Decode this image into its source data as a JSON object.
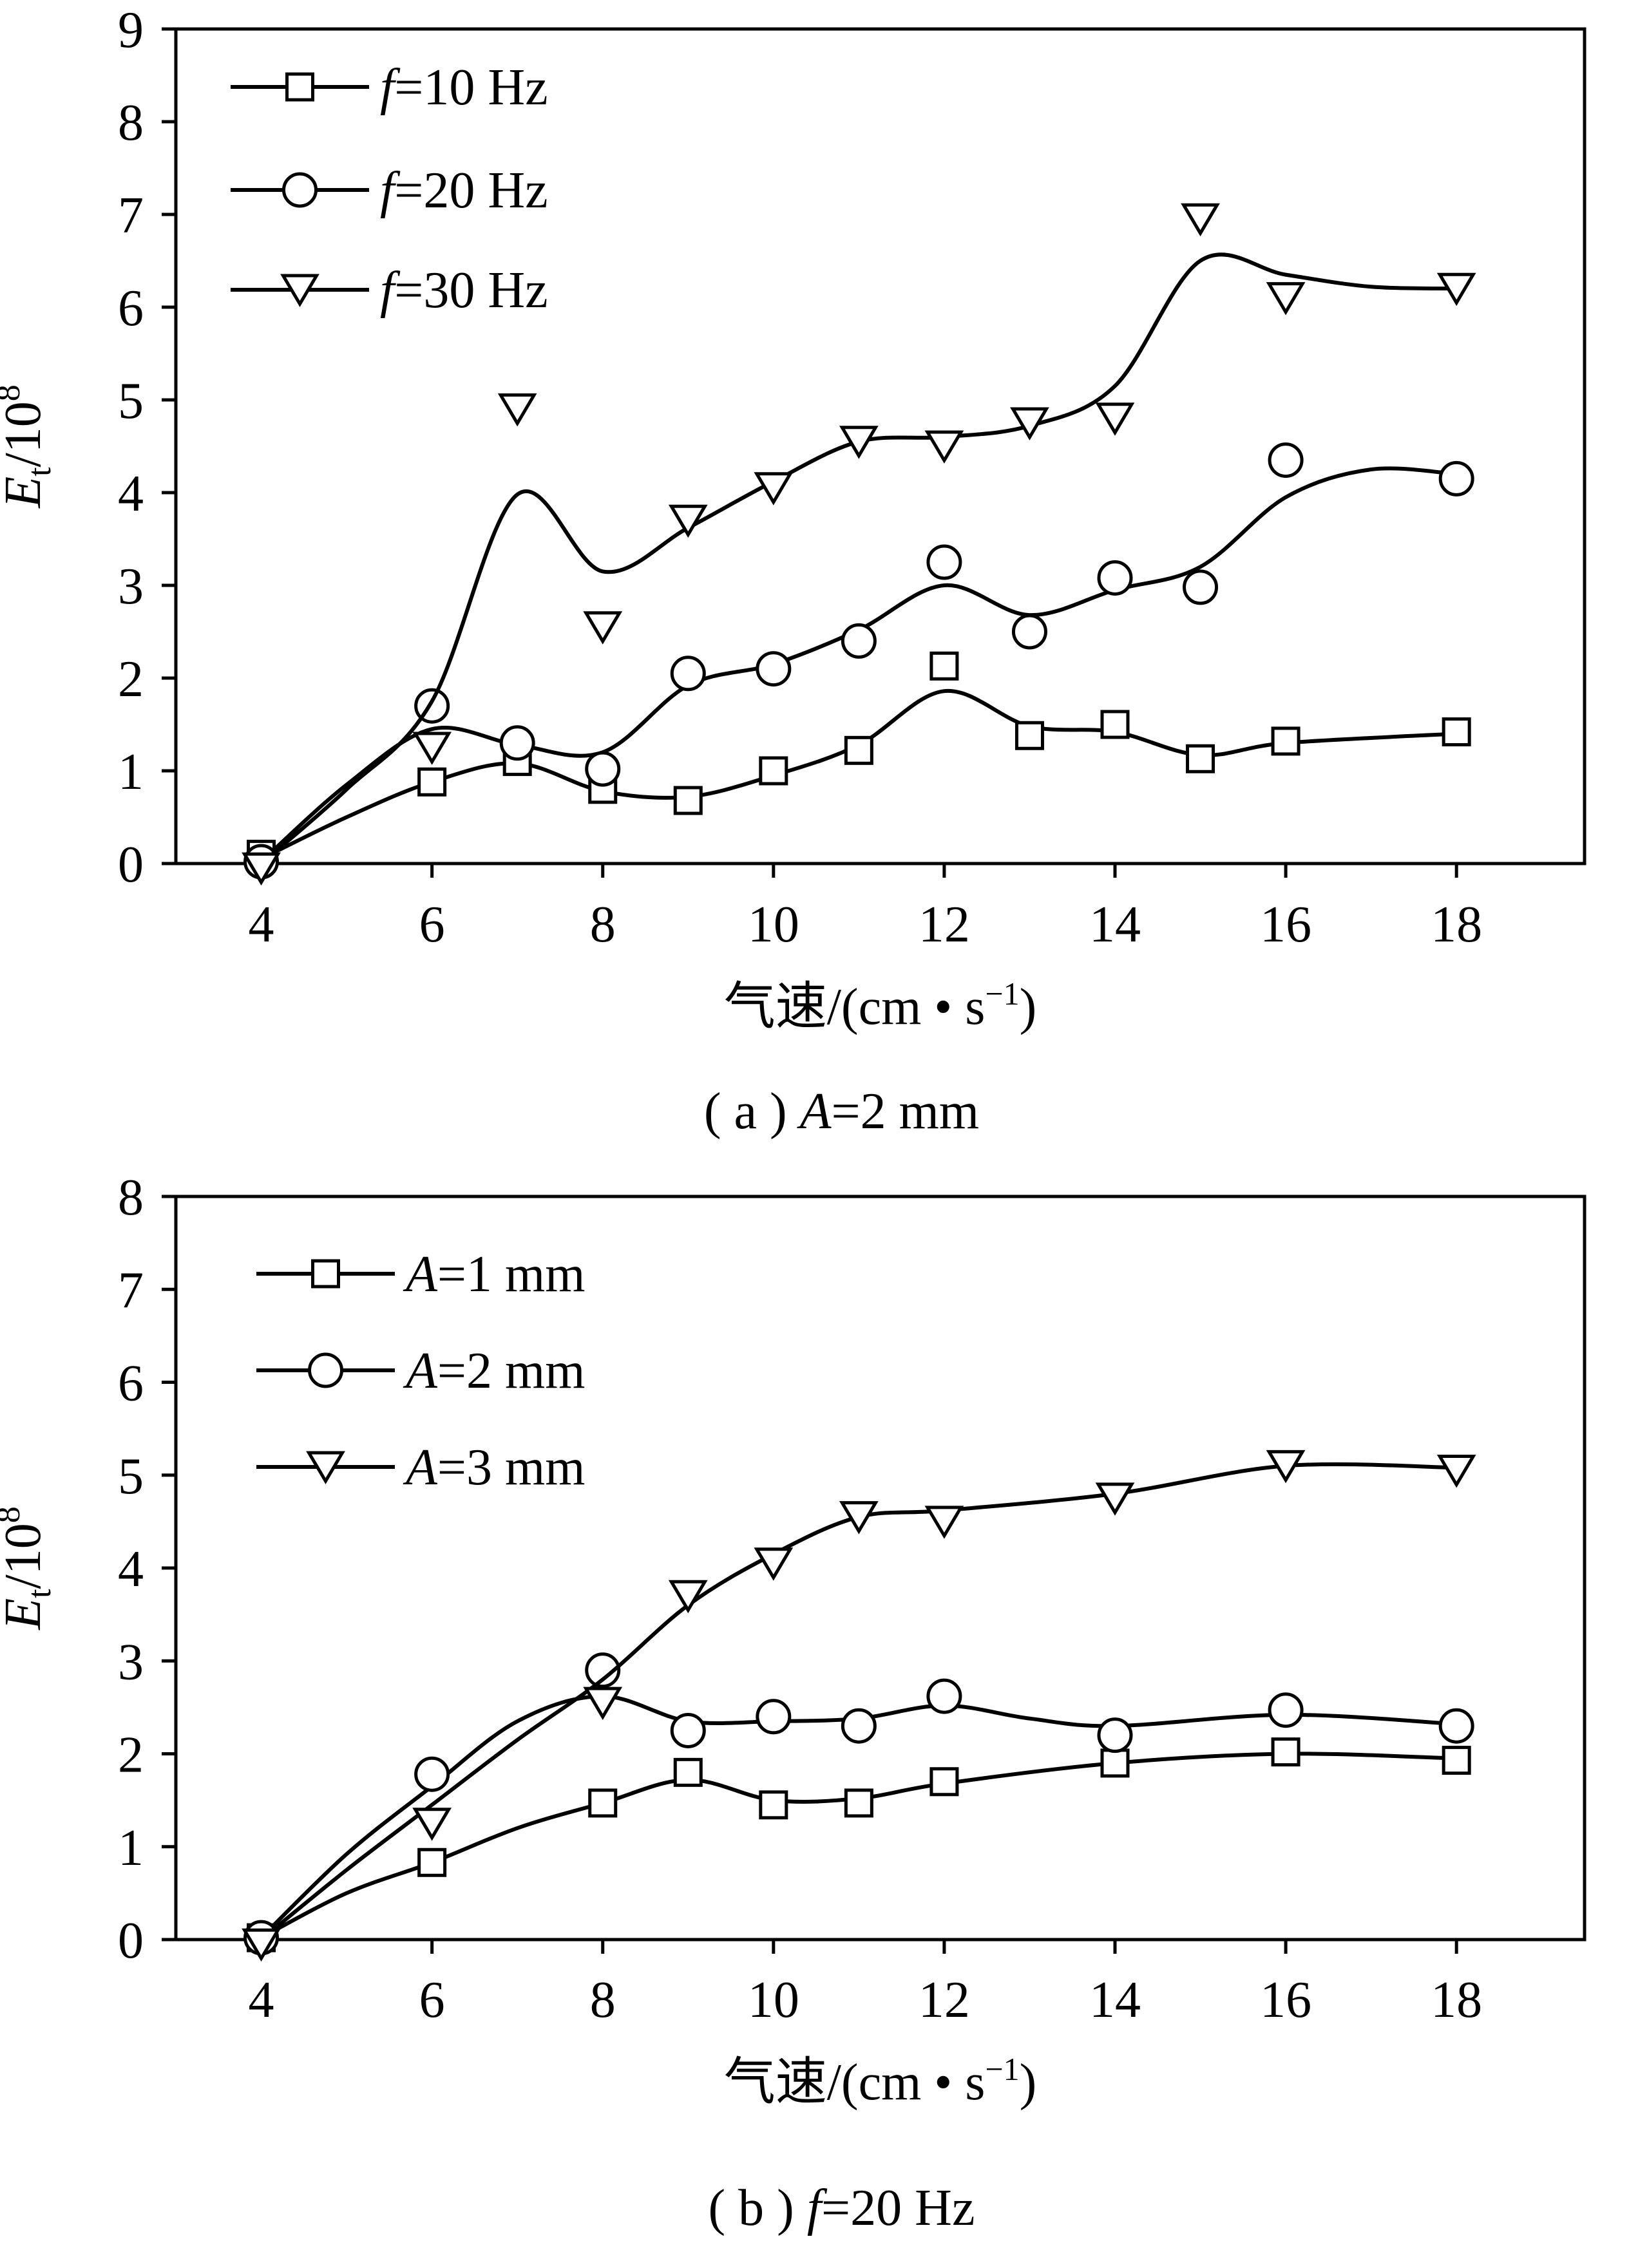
{
  "chart_data": [
    {
      "type": "line",
      "panel": "a",
      "caption": "( a ) A=2 mm",
      "caption_prefix": "( a ) ",
      "caption_var": "A",
      "caption_rest": "=2 mm",
      "xlabel": "气速/(cm • s⁻¹)",
      "xlabel_main": "气速/(cm • s",
      "xlabel_sup": "−1",
      "xlabel_end": ")",
      "ylabel_main": "E",
      "ylabel_sub": "t",
      "ylabel_mid": "/10",
      "ylabel_sup": "8",
      "xlim": [
        3,
        19.5
      ],
      "ylim": [
        0,
        9
      ],
      "xticks": [
        4,
        6,
        8,
        10,
        12,
        14,
        16,
        18
      ],
      "yticks": [
        0,
        1,
        2,
        3,
        4,
        5,
        6,
        7,
        8,
        9
      ],
      "grid": false,
      "legend_position": "top-left",
      "series": [
        {
          "name": "f=10 Hz",
          "legend_var": "f",
          "legend_rest": "=10 Hz",
          "marker": "square",
          "x": [
            4,
            6,
            7,
            8,
            9,
            10,
            11,
            12,
            13,
            14,
            15,
            16,
            18
          ],
          "y": [
            0.1,
            0.88,
            1.1,
            0.8,
            0.68,
            1.0,
            1.22,
            2.13,
            1.38,
            1.5,
            1.13,
            1.32,
            1.42
          ],
          "curve": [
            [
              4,
              0.05
            ],
            [
              5,
              0.5
            ],
            [
              6,
              0.88
            ],
            [
              7,
              1.08
            ],
            [
              8,
              0.78
            ],
            [
              9,
              0.72
            ],
            [
              10,
              0.95
            ],
            [
              11,
              1.28
            ],
            [
              12,
              1.86
            ],
            [
              13,
              1.48
            ],
            [
              14,
              1.42
            ],
            [
              15,
              1.17
            ],
            [
              16,
              1.3
            ],
            [
              18,
              1.4
            ]
          ]
        },
        {
          "name": "f=20 Hz",
          "legend_var": "f",
          "legend_rest": "=20 Hz",
          "marker": "circle",
          "x": [
            4,
            6,
            7,
            8,
            9,
            10,
            11,
            12,
            13,
            14,
            15,
            16,
            18
          ],
          "y": [
            0.02,
            1.7,
            1.3,
            1.02,
            2.05,
            2.1,
            2.4,
            3.25,
            2.5,
            3.08,
            2.98,
            4.35,
            4.15
          ],
          "curve": [
            [
              4,
              0.02
            ],
            [
              5,
              0.85
            ],
            [
              6,
              1.45
            ],
            [
              7,
              1.28
            ],
            [
              8,
              1.2
            ],
            [
              9,
              1.92
            ],
            [
              10,
              2.15
            ],
            [
              11,
              2.52
            ],
            [
              12,
              3.0
            ],
            [
              13,
              2.68
            ],
            [
              14,
              2.95
            ],
            [
              15,
              3.2
            ],
            [
              16,
              3.95
            ],
            [
              17,
              4.25
            ],
            [
              18,
              4.2
            ]
          ]
        },
        {
          "name": "f=30 Hz",
          "legend_var": "f",
          "legend_rest": "=30 Hz",
          "marker": "triangle-down",
          "x": [
            4,
            6,
            7,
            8,
            9,
            10,
            11,
            12,
            13,
            14,
            15,
            16,
            18
          ],
          "y": [
            -0.05,
            1.25,
            4.9,
            2.55,
            3.7,
            4.05,
            4.55,
            4.5,
            4.75,
            4.8,
            6.95,
            6.1,
            6.2
          ],
          "curve": [
            [
              4,
              0.0
            ],
            [
              5,
              0.8
            ],
            [
              6,
              1.75
            ],
            [
              7,
              3.98
            ],
            [
              8,
              3.15
            ],
            [
              9,
              3.62
            ],
            [
              10,
              4.12
            ],
            [
              11,
              4.55
            ],
            [
              12,
              4.6
            ],
            [
              13,
              4.72
            ],
            [
              14,
              5.15
            ],
            [
              15,
              6.5
            ],
            [
              16,
              6.35
            ],
            [
              17,
              6.22
            ],
            [
              18,
              6.2
            ]
          ]
        }
      ]
    },
    {
      "type": "line",
      "panel": "b",
      "caption": "( b ) f=20 Hz",
      "caption_prefix": "( b ) ",
      "caption_var": "f",
      "caption_rest": "=20 Hz",
      "xlabel": "气速/(cm • s⁻¹)",
      "xlabel_main": "气速/(cm • s",
      "xlabel_sup": "−1",
      "xlabel_end": ")",
      "ylabel_main": "E",
      "ylabel_sub": "t",
      "ylabel_mid": "/10",
      "ylabel_sup": "8",
      "xlim": [
        3,
        19.5
      ],
      "ylim": [
        0,
        8
      ],
      "xticks": [
        4,
        6,
        8,
        10,
        12,
        14,
        16,
        18
      ],
      "yticks": [
        0,
        1,
        2,
        3,
        4,
        5,
        6,
        7,
        8
      ],
      "grid": false,
      "legend_position": "top-left",
      "series": [
        {
          "name": "A=1 mm",
          "legend_var": "A",
          "legend_rest": "=1 mm",
          "marker": "square",
          "x": [
            4,
            6,
            8,
            9,
            10,
            11,
            12,
            14,
            16,
            18
          ],
          "y": [
            0.02,
            0.83,
            1.47,
            1.8,
            1.45,
            1.47,
            1.7,
            1.9,
            2.02,
            1.93
          ],
          "curve": [
            [
              4,
              0.02
            ],
            [
              5,
              0.5
            ],
            [
              6,
              0.83
            ],
            [
              7,
              1.2
            ],
            [
              8,
              1.47
            ],
            [
              9,
              1.72
            ],
            [
              10,
              1.5
            ],
            [
              11,
              1.52
            ],
            [
              12,
              1.68
            ],
            [
              14,
              1.9
            ],
            [
              16,
              2.0
            ],
            [
              18,
              1.95
            ]
          ]
        },
        {
          "name": "A=2 mm",
          "legend_var": "A",
          "legend_rest": "=2 mm",
          "marker": "circle",
          "x": [
            4,
            6,
            8,
            9,
            10,
            11,
            12,
            14,
            16,
            18
          ],
          "y": [
            0.02,
            1.78,
            2.9,
            2.25,
            2.4,
            2.3,
            2.62,
            2.2,
            2.47,
            2.3
          ],
          "curve": [
            [
              4,
              0.02
            ],
            [
              5,
              0.92
            ],
            [
              6,
              1.65
            ],
            [
              7,
              2.35
            ],
            [
              8,
              2.62
            ],
            [
              9,
              2.35
            ],
            [
              10,
              2.35
            ],
            [
              11,
              2.38
            ],
            [
              12,
              2.52
            ],
            [
              13,
              2.38
            ],
            [
              14,
              2.3
            ],
            [
              16,
              2.42
            ],
            [
              18,
              2.32
            ]
          ]
        },
        {
          "name": "A=3 mm",
          "legend_var": "A",
          "legend_rest": "=3 mm",
          "marker": "triangle-down",
          "x": [
            4,
            6,
            8,
            9,
            10,
            11,
            12,
            14,
            16,
            18
          ],
          "y": [
            -0.05,
            1.25,
            2.55,
            3.7,
            4.05,
            4.55,
            4.5,
            4.75,
            5.1,
            5.05
          ],
          "curve": [
            [
              4,
              0.0
            ],
            [
              5,
              0.75
            ],
            [
              6,
              1.45
            ],
            [
              7,
              2.15
            ],
            [
              8,
              2.8
            ],
            [
              9,
              3.6
            ],
            [
              10,
              4.15
            ],
            [
              11,
              4.55
            ],
            [
              12,
              4.62
            ],
            [
              14,
              4.8
            ],
            [
              16,
              5.1
            ],
            [
              18,
              5.08
            ]
          ]
        }
      ]
    }
  ]
}
